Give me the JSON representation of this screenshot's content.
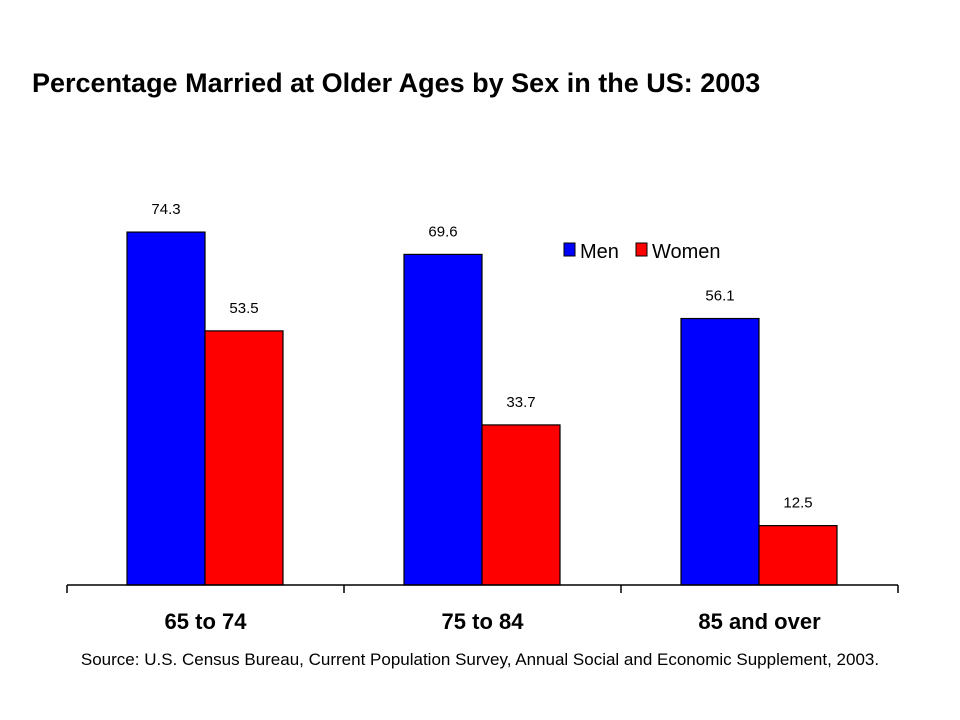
{
  "chart_data": {
    "type": "bar",
    "title": "Percentage Married at Older Ages by Sex in the US: 2003",
    "source": "Source: U.S. Census Bureau, Current Population Survey, Annual Social and Economic Supplement, 2003.",
    "categories": [
      "65 to 74",
      "75 to 84",
      "85 and over"
    ],
    "series": [
      {
        "name": "Men",
        "values": [
          74.3,
          69.6,
          56.1
        ],
        "color": "#0000FF"
      },
      {
        "name": "Women",
        "values": [
          53.5,
          33.7,
          12.5
        ],
        "color": "#FF0000"
      }
    ],
    "ylim": [
      0,
      80
    ],
    "grid": false,
    "legend_position": "top-right",
    "xlabel": "",
    "ylabel": ""
  }
}
